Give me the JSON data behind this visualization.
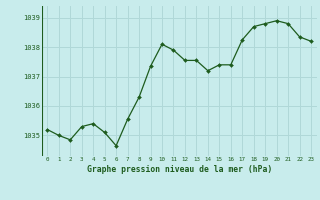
{
  "x": [
    0,
    1,
    2,
    3,
    4,
    5,
    6,
    7,
    8,
    9,
    10,
    11,
    12,
    13,
    14,
    15,
    16,
    17,
    18,
    19,
    20,
    21,
    22,
    23
  ],
  "y": [
    1035.2,
    1035.0,
    1034.85,
    1035.3,
    1035.4,
    1035.1,
    1034.65,
    1035.55,
    1036.3,
    1037.35,
    1038.1,
    1037.9,
    1037.55,
    1037.55,
    1037.2,
    1037.4,
    1037.4,
    1038.25,
    1038.7,
    1038.8,
    1038.9,
    1038.8,
    1038.35,
    1038.2
  ],
  "line_color": "#1e5c1e",
  "marker_color": "#1e5c1e",
  "bg_color": "#c8ecec",
  "grid_color": "#b0d8d8",
  "xlabel": "Graphe pression niveau de la mer (hPa)",
  "xlabel_color": "#1e5c1e",
  "yticks": [
    1035,
    1036,
    1037,
    1038,
    1039
  ],
  "ylim": [
    1034.3,
    1039.4
  ],
  "xlim": [
    -0.5,
    23.5
  ]
}
